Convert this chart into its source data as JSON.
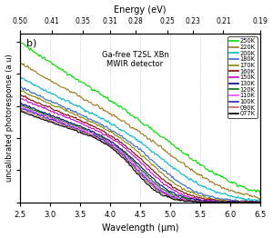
{
  "title": "Ga-free T2SL XBn\nMWIR detector",
  "panel_label": "b)",
  "xlabel": "Wavelength (μm)",
  "ylabel": "uncalibrated photoresponse (a.u)",
  "top_xlabel": "Energy (eV)",
  "xlim": [
    2.5,
    6.5
  ],
  "ylim": [
    0,
    1.05
  ],
  "x_ticks": [
    2.5,
    3.0,
    3.5,
    4.0,
    4.5,
    5.0,
    5.5,
    6.0,
    6.5
  ],
  "energy_ticks": [
    0.5,
    0.41,
    0.35,
    0.31,
    0.28,
    0.25,
    0.23,
    0.21,
    0.19
  ],
  "temperatures": [
    "250K",
    "220K",
    "200K",
    "180K",
    "170K",
    "160K",
    "150K",
    "130K",
    "120K",
    "110K",
    "100K",
    "090K",
    "077K"
  ],
  "colors": [
    "#00dd00",
    "#9b7a1a",
    "#00b8c8",
    "#3366cc",
    "#888800",
    "#880000",
    "#cc00cc",
    "#000088",
    "#007700",
    "#ff44ff",
    "#2222cc",
    "#cc6666",
    "#000000"
  ],
  "cutoffs": [
    5.5,
    5.3,
    5.1,
    4.9,
    4.82,
    4.74,
    4.68,
    4.62,
    4.58,
    4.55,
    4.52,
    4.5,
    4.47
  ],
  "steepness": [
    1.6,
    1.9,
    2.2,
    2.7,
    2.9,
    3.1,
    3.3,
    3.5,
    3.7,
    3.9,
    4.0,
    4.1,
    4.3
  ],
  "amplitude": [
    1.0,
    0.87,
    0.78,
    0.72,
    0.7,
    0.67,
    0.65,
    0.62,
    0.61,
    0.6,
    0.59,
    0.58,
    0.57
  ],
  "background_color": "#ffffff",
  "figsize": [
    3.0,
    2.62
  ],
  "dpi": 100
}
